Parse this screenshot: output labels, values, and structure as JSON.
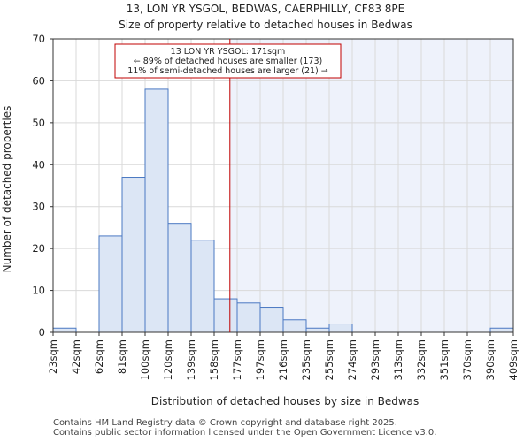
{
  "chart_data": {
    "type": "bar",
    "title": "13, LON YR YSGOL, BEDWAS, CAERPHILLY, CF83 8PE",
    "subtitle": "Size of property relative to detached houses in Bedwas",
    "xlabel": "Distribution of detached houses by size in Bedwas",
    "ylabel": "Number of detached properties",
    "ylim": [
      0,
      70
    ],
    "yticks": [
      0,
      10,
      20,
      30,
      40,
      50,
      60,
      70
    ],
    "bin_edges": [
      23,
      42,
      62,
      81,
      100,
      120,
      139,
      158,
      177,
      197,
      216,
      235,
      255,
      274,
      293,
      313,
      332,
      351,
      370,
      390,
      409
    ],
    "tick_labels": [
      "23sqm",
      "42sqm",
      "62sqm",
      "81sqm",
      "100sqm",
      "120sqm",
      "139sqm",
      "158sqm",
      "177sqm",
      "197sqm",
      "216sqm",
      "235sqm",
      "255sqm",
      "274sqm",
      "293sqm",
      "313sqm",
      "332sqm",
      "351sqm",
      "370sqm",
      "390sqm",
      "409sqm"
    ],
    "values": [
      1,
      0,
      23,
      37,
      58,
      26,
      22,
      8,
      7,
      6,
      3,
      1,
      2,
      0,
      0,
      0,
      0,
      0,
      0,
      1
    ],
    "marker": {
      "value": 171,
      "lines": [
        "13 LON YR YSGOL: 171sqm",
        "← 89% of detached houses are smaller (173)",
        "11% of semi-detached houses are larger (21) →"
      ]
    },
    "colors": {
      "bar_fill": "#dce6f5",
      "bar_stroke": "#4a78c2",
      "highlight_bg": "#eef2fb",
      "marker": "#c00000",
      "grid": "#d9d9d9"
    }
  },
  "footer": {
    "line1": "Contains HM Land Registry data © Crown copyright and database right 2025.",
    "line2": "Contains public sector information licensed under the Open Government Licence v3.0."
  }
}
